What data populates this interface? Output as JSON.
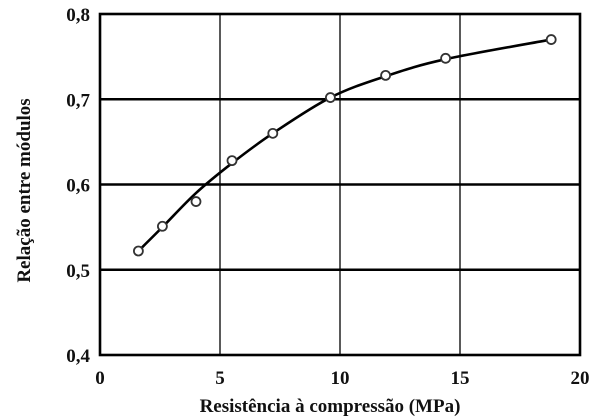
{
  "chart_data": {
    "type": "scatter",
    "title": "",
    "xlabel": "Resistência à compressão (MPa)",
    "ylabel": "Relação entre módulos",
    "xlim": [
      0,
      20
    ],
    "ylim": [
      0.4,
      0.8
    ],
    "x_ticks": [
      0,
      5,
      10,
      15,
      20
    ],
    "y_ticks": [
      0.4,
      0.5,
      0.6,
      0.7,
      0.8
    ],
    "x_tick_labels": [
      "0",
      "5",
      "10",
      "15",
      "20"
    ],
    "y_tick_labels": [
      "0,4",
      "0,5",
      "0,6",
      "0,7",
      "0,8"
    ],
    "grid": true,
    "legend": "none",
    "series": [
      {
        "kind": "points",
        "marker": "open-circle",
        "x": [
          1.6,
          2.6,
          4.0,
          5.5,
          7.2,
          9.6,
          11.9,
          14.4,
          18.8
        ],
        "y": [
          0.522,
          0.551,
          0.58,
          0.628,
          0.66,
          0.702,
          0.728,
          0.748,
          0.77
        ]
      },
      {
        "kind": "fitted-curve",
        "x": [
          1.6,
          2.6,
          4.0,
          5.5,
          7.2,
          9.6,
          11.9,
          14.4,
          18.8
        ],
        "y": [
          0.522,
          0.55,
          0.59,
          0.625,
          0.66,
          0.702,
          0.727,
          0.747,
          0.77
        ]
      }
    ]
  }
}
